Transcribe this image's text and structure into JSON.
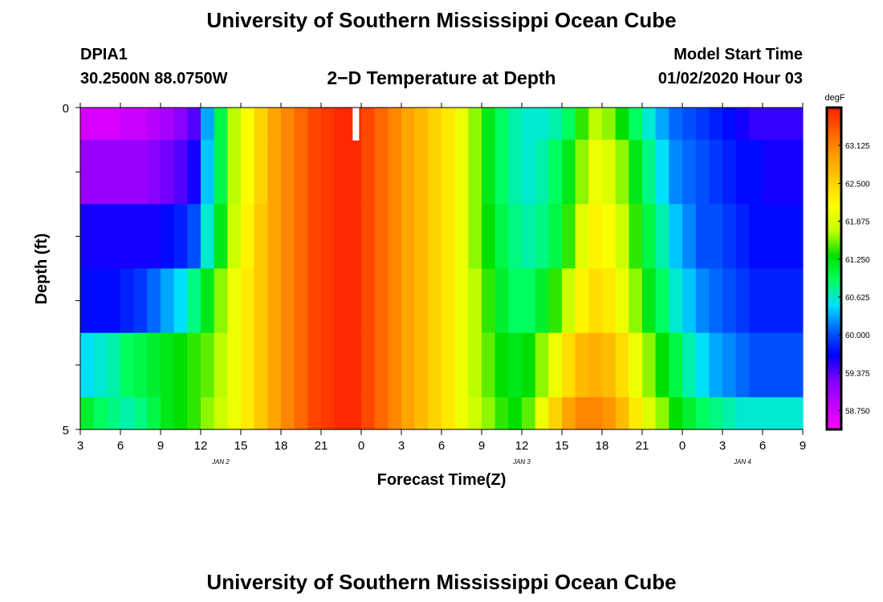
{
  "header": {
    "title_top": "University of Southern Mississippi Ocean Cube",
    "station": "DPIA1",
    "coords": "30.2500N 88.0750W",
    "subtitle": "2−D Temperature at Depth",
    "model_start_label": "Model Start Time",
    "model_start_value": "01/02/2020 Hour 03"
  },
  "footer": {
    "title_bottom": "University of Southern Mississippi Ocean Cube"
  },
  "chart_data": {
    "type": "heatmap",
    "title": "2−D Temperature at Depth",
    "xlabel": "Forecast Time(Z)",
    "ylabel": "Depth (ft)",
    "x_tick_labels": [
      "3",
      "6",
      "9",
      "12",
      "15",
      "18",
      "21",
      "0",
      "3",
      "6",
      "9",
      "12",
      "15",
      "18",
      "21",
      "0",
      "3",
      "6",
      "9"
    ],
    "date_labels": [
      {
        "label": "JAN 2",
        "at_tick": 3.5
      },
      {
        "label": "JAN 3",
        "at_tick": 11
      },
      {
        "label": "JAN 4",
        "at_tick": 16.5
      }
    ],
    "y_tick_labels": [
      {
        "label": "0",
        "depth": 0
      },
      {
        "label": "5",
        "depth": 5
      }
    ],
    "ylim": [
      0,
      5
    ],
    "depth_layers": [
      0,
      0.5,
      1.5,
      2.5,
      3.5,
      4.5
    ],
    "hours_from_start": [
      0,
      1,
      2,
      3,
      4,
      5,
      6,
      7,
      8,
      9,
      10,
      11,
      12,
      13,
      14,
      15,
      16,
      17,
      18,
      19,
      20,
      21,
      22,
      23,
      24,
      25,
      26,
      27,
      28,
      29,
      30,
      31,
      32,
      33,
      34,
      35,
      36,
      37,
      38,
      39,
      40,
      41,
      42,
      43,
      44,
      45,
      46,
      47,
      48,
      49,
      50,
      51,
      52,
      53
    ],
    "temperature_profiles": [
      [
        58.7,
        58.7,
        58.7,
        58.8,
        58.8,
        58.9,
        59.0,
        59.2,
        59.4,
        60.3,
        61.0,
        61.7,
        62.1,
        62.5,
        62.9,
        63.1,
        63.3,
        63.5,
        63.6,
        63.7,
        63.7,
        63.5,
        63.3,
        63.1,
        62.9,
        62.7,
        62.5,
        62.3,
        62.0,
        61.6,
        61.2,
        60.9,
        60.7,
        60.6,
        60.6,
        60.7,
        60.9,
        61.4,
        61.7,
        61.6,
        61.3,
        60.9,
        60.6,
        60.3,
        60.1,
        60.0,
        59.9,
        59.8,
        59.7,
        59.6,
        59.5,
        59.5,
        59.5,
        59.5
      ],
      [
        59.1,
        59.1,
        59.1,
        59.1,
        59.1,
        59.2,
        59.3,
        59.4,
        59.6,
        60.4,
        61.0,
        61.7,
        62.1,
        62.5,
        62.9,
        63.1,
        63.3,
        63.5,
        63.6,
        63.7,
        63.7,
        63.5,
        63.3,
        63.1,
        62.9,
        62.7,
        62.5,
        62.3,
        62.0,
        61.6,
        61.2,
        60.9,
        60.7,
        60.6,
        60.7,
        60.9,
        61.2,
        61.6,
        62.0,
        61.9,
        61.6,
        61.2,
        60.8,
        60.5,
        60.2,
        60.1,
        60.0,
        59.9,
        59.8,
        59.7,
        59.7,
        59.6,
        59.6,
        59.6
      ],
      [
        59.6,
        59.6,
        59.6,
        59.6,
        59.6,
        59.6,
        59.7,
        59.8,
        60.0,
        60.6,
        61.2,
        61.8,
        62.2,
        62.6,
        62.9,
        63.1,
        63.3,
        63.5,
        63.6,
        63.7,
        63.7,
        63.5,
        63.3,
        63.1,
        62.9,
        62.7,
        62.5,
        62.3,
        62.0,
        61.6,
        61.3,
        61.0,
        60.8,
        60.7,
        60.8,
        61.0,
        61.4,
        61.9,
        62.2,
        62.1,
        61.8,
        61.4,
        61.0,
        60.7,
        60.4,
        60.2,
        60.0,
        60.0,
        59.9,
        59.8,
        59.7,
        59.7,
        59.7,
        59.7
      ],
      [
        59.7,
        59.7,
        59.7,
        59.8,
        59.9,
        60.1,
        60.3,
        60.5,
        60.8,
        61.2,
        61.6,
        62.0,
        62.3,
        62.6,
        62.9,
        63.1,
        63.3,
        63.5,
        63.6,
        63.7,
        63.7,
        63.5,
        63.3,
        63.1,
        62.9,
        62.7,
        62.5,
        62.3,
        62.0,
        61.7,
        61.4,
        61.1,
        60.9,
        60.9,
        61.1,
        61.4,
        61.8,
        62.2,
        62.4,
        62.3,
        62.0,
        61.6,
        61.2,
        60.9,
        60.6,
        60.4,
        60.2,
        60.1,
        60.0,
        59.9,
        59.8,
        59.8,
        59.8,
        59.8
      ],
      [
        60.5,
        60.6,
        60.7,
        60.9,
        61.0,
        61.1,
        61.2,
        61.3,
        61.4,
        61.5,
        61.7,
        62.0,
        62.3,
        62.6,
        62.9,
        63.1,
        63.3,
        63.5,
        63.6,
        63.7,
        63.7,
        63.5,
        63.3,
        63.1,
        62.9,
        62.7,
        62.5,
        62.3,
        62.0,
        61.7,
        61.5,
        61.3,
        61.2,
        61.3,
        61.6,
        62.0,
        62.4,
        62.7,
        62.8,
        62.7,
        62.4,
        62.0,
        61.6,
        61.3,
        61.0,
        60.7,
        60.5,
        60.3,
        60.2,
        60.1,
        60.0,
        60.0,
        60.0,
        60.0
      ],
      [
        61.1,
        60.9,
        60.8,
        60.7,
        60.8,
        61.0,
        61.2,
        61.3,
        61.4,
        61.6,
        61.8,
        62.0,
        62.3,
        62.6,
        62.9,
        63.1,
        63.3,
        63.5,
        63.6,
        63.7,
        63.7,
        63.5,
        63.3,
        63.1,
        62.9,
        62.7,
        62.5,
        62.3,
        62.0,
        61.8,
        61.6,
        61.4,
        61.3,
        61.5,
        62.0,
        62.5,
        62.9,
        63.1,
        63.1,
        63.0,
        62.7,
        62.3,
        61.9,
        61.6,
        61.3,
        61.1,
        60.9,
        60.8,
        60.7,
        60.6,
        60.6,
        60.6,
        60.6,
        60.6
      ]
    ],
    "missing_marker": {
      "hour": 20.6,
      "depth_from": 0,
      "depth_to": 0.5
    },
    "colorbar": {
      "unit": "degF",
      "min": 58.44,
      "max": 63.75,
      "tick_labels": [
        "63.125",
        "62.500",
        "61.875",
        "61.250",
        "60.625",
        "60.000",
        "59.375",
        "58.750"
      ]
    },
    "colors": {
      "palette_low_to_high": [
        "#ff00ff",
        "#c000ff",
        "#8000ff",
        "#0000ff",
        "#0060ff",
        "#00e0ff",
        "#00ff60",
        "#00e000",
        "#c0ff00",
        "#ffff00",
        "#ffd000",
        "#ffa000",
        "#ff6000",
        "#ff2000"
      ]
    }
  }
}
